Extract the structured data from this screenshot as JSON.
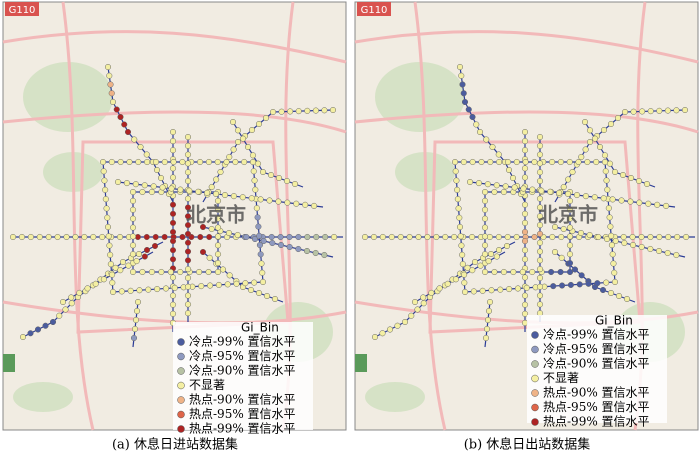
{
  "panels": [
    {
      "caption": "(a) 休息日进站数据集",
      "map_label": "北京市",
      "road_label": "G110",
      "legend": {
        "title": "Gi_Bin",
        "items": [
          {
            "label": "冷点-99% 置信水平",
            "color": "#4b5c9e"
          },
          {
            "label": "冷点-95% 置信水平",
            "color": "#8e99bf"
          },
          {
            "label": "冷点-90% 置信水平",
            "color": "#b7c2a4"
          },
          {
            "label": "不显著",
            "color": "#f4efa2"
          },
          {
            "label": "热点-90% 置信水平",
            "color": "#efb387"
          },
          {
            "label": "热点-95% 置信水平",
            "color": "#de6448"
          },
          {
            "label": "热点-99% 置信水平",
            "color": "#ad2323"
          }
        ]
      }
    },
    {
      "caption": "(b) 休息日出站数据集",
      "map_label": "北京市",
      "road_label": "G110",
      "legend": {
        "title": "Gi_Bin",
        "items": [
          {
            "label": "冷点-99% 置信水平",
            "color": "#4b5c9e"
          },
          {
            "label": "冷点-95% 置信水平",
            "color": "#8e99bf"
          },
          {
            "label": "冷点-90% 置信水平",
            "color": "#b7c2a4"
          },
          {
            "label": "不显著",
            "color": "#f4efa2"
          },
          {
            "label": "热点-90% 置信水平",
            "color": "#efb387"
          },
          {
            "label": "热点-95% 置信水平",
            "color": "#de6448"
          },
          {
            "label": "热点-99% 置信水平",
            "color": "#ad2323"
          }
        ]
      }
    }
  ]
}
